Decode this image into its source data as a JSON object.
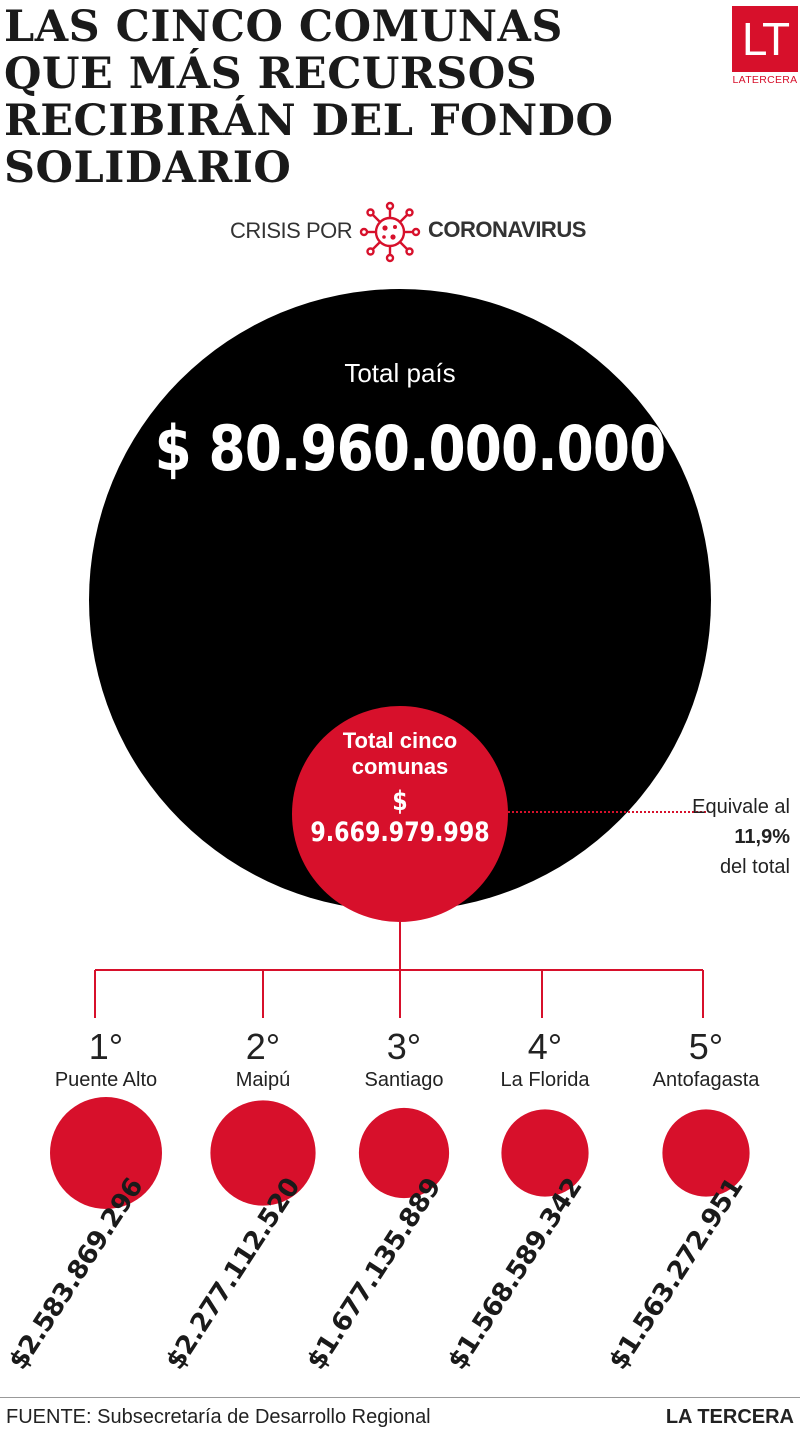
{
  "title_lines": [
    "Las cinco comunas",
    "que más recursos",
    "recibirán del fondo",
    "solidario"
  ],
  "logo": {
    "mark": "LT",
    "text": "LATERCERA",
    "color": "#d7102b"
  },
  "section": {
    "pre": "CRISIS POR",
    "icon": "coronavirus-icon",
    "post": "CORONAVIRUS"
  },
  "colors": {
    "accent": "#d7102b",
    "total_circle": "#000000"
  },
  "chart_data": {
    "type": "bubble",
    "total": {
      "label": "Total país",
      "value": 80960000000,
      "value_text": "$ 80.960.000.000"
    },
    "subtotal": {
      "label": "Total cinco comunas",
      "value": 9669979998,
      "value_text": "$ 9.669.979.998"
    },
    "share": {
      "pre": "Equivale al",
      "value_text": "11,9%",
      "post": "del total",
      "value": 11.9
    },
    "categories": [
      "Puente Alto",
      "Maipú",
      "Santiago",
      "La Florida",
      "Antofagasta"
    ],
    "ranks": [
      "1°",
      "2°",
      "3°",
      "4°",
      "5°"
    ],
    "values": [
      2583869296,
      2277112520,
      1677135889,
      1568589342,
      1563272951
    ],
    "value_labels": [
      "$2.583.869.296",
      "$2.277.112.520",
      "$1.677.135.889",
      "$1.568.589.342",
      "$1.563.272.951"
    ]
  },
  "footer": {
    "source": "FUENTE: Subsecretaría de Desarrollo Regional",
    "brand": "LA TERCERA"
  }
}
